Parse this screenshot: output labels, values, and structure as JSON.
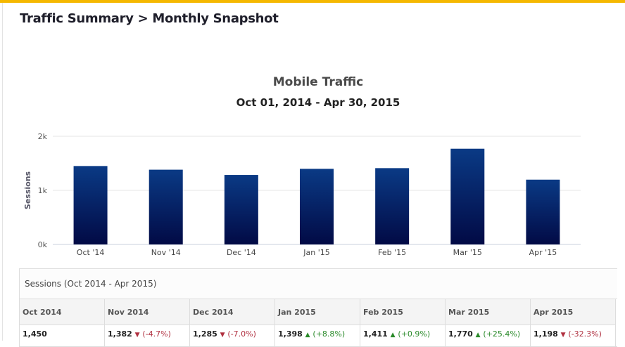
{
  "page": {
    "title": "Traffic Summary > Monthly Snapshot"
  },
  "chart_data": {
    "type": "bar",
    "title": "Mobile Traffic",
    "subtitle": "Oct 01, 2014 - Apr 30, 2015",
    "ylabel": "Sessions",
    "xlabel": "",
    "categories": [
      "Oct '14",
      "Nov '14",
      "Dec '14",
      "Jan '15",
      "Feb '15",
      "Mar '15",
      "Apr '15"
    ],
    "values": [
      1450,
      1382,
      1285,
      1398,
      1411,
      1770,
      1198
    ],
    "ylim": [
      0,
      2000
    ],
    "yticks": [
      {
        "v": 0,
        "label": "0k"
      },
      {
        "v": 1000,
        "label": "1k"
      },
      {
        "v": 2000,
        "label": "2k"
      }
    ],
    "grid": true,
    "bar_color": "#0a2a6e"
  },
  "table": {
    "caption": "Sessions (Oct 2014 - Apr 2015)",
    "columns": [
      "Oct 2014",
      "Nov 2014",
      "Dec 2014",
      "Jan 2015",
      "Feb 2015",
      "Mar 2015",
      "Apr 2015"
    ],
    "values": [
      {
        "v": "1,450",
        "d": "",
        "c": ""
      },
      {
        "v": "1,382",
        "d": "(-4.7%)",
        "c": "dn"
      },
      {
        "v": "1,285",
        "d": "(-7.0%)",
        "c": "dn"
      },
      {
        "v": "1,398",
        "d": "(+8.8%)",
        "c": "up"
      },
      {
        "v": "1,411",
        "d": "(+0.9%)",
        "c": "up"
      },
      {
        "v": "1,770",
        "d": "(+25.4%)",
        "c": "up"
      },
      {
        "v": "1,198",
        "d": "(-32.3%)",
        "c": "dn"
      }
    ]
  }
}
